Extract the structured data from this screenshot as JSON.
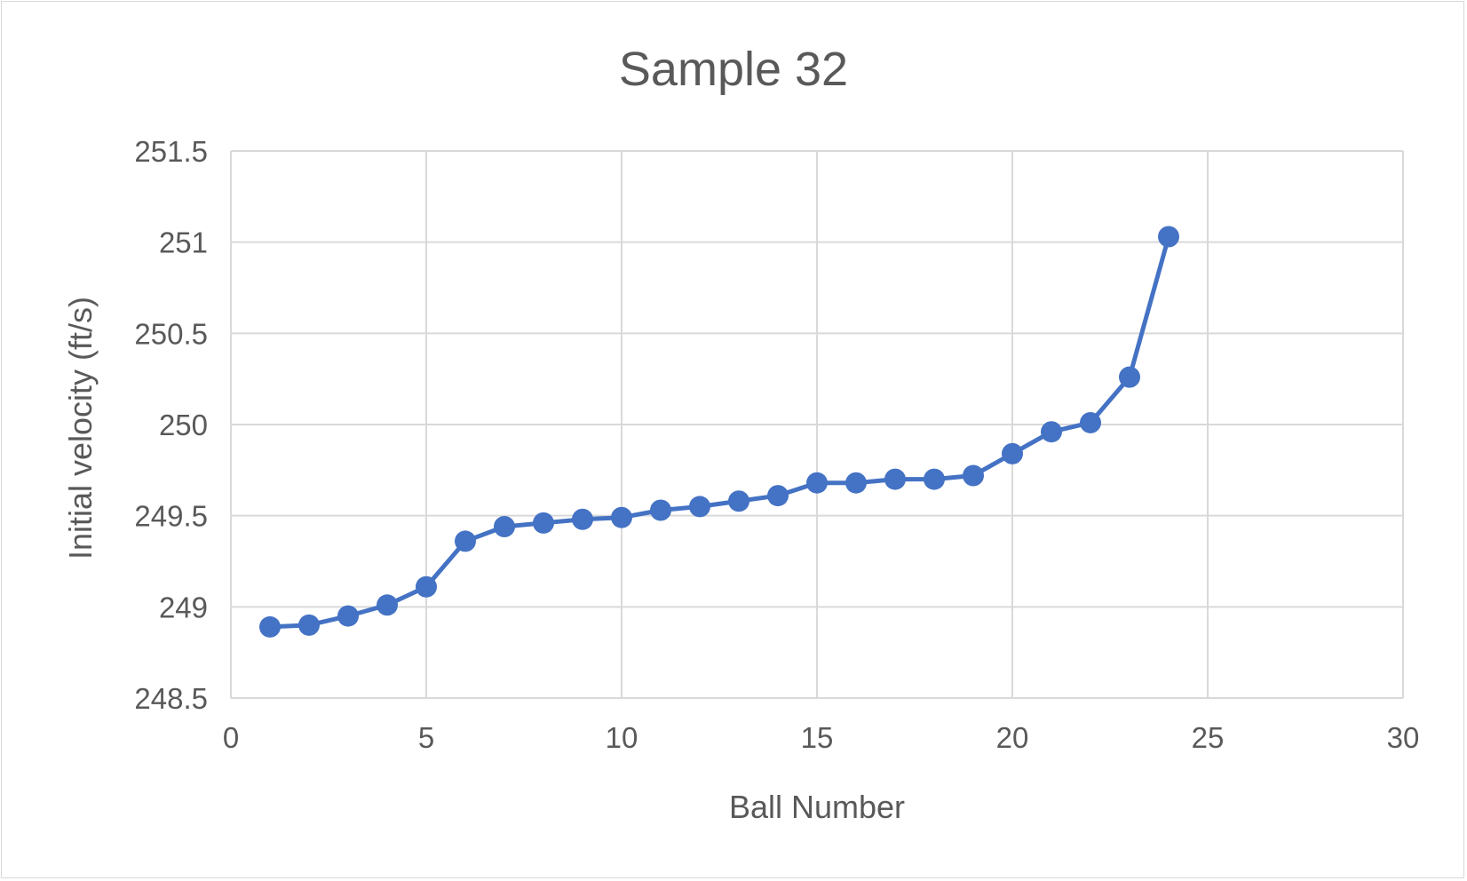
{
  "chart_data": {
    "type": "line",
    "title": "Sample 32",
    "xlabel": "Ball Number",
    "ylabel": "Initial velocity (ft/s)",
    "xlim": [
      0,
      30
    ],
    "ylim": [
      248.5,
      251.5
    ],
    "x_ticks": [
      0,
      5,
      10,
      15,
      20,
      25,
      30
    ],
    "y_ticks": [
      248.5,
      249,
      249.5,
      250,
      250.5,
      251,
      251.5
    ],
    "x_tick_labels": [
      "0",
      "5",
      "10",
      "15",
      "20",
      "25",
      "30"
    ],
    "y_tick_labels": [
      "248.5",
      "249",
      "249.5",
      "250",
      "250.5",
      "251",
      "251.5"
    ],
    "grid": true,
    "legend": "none",
    "series": [
      {
        "color": "#4472c4",
        "marker": "circle",
        "x": [
          1,
          2,
          3,
          4,
          5,
          6,
          7,
          8,
          9,
          10,
          11,
          12,
          13,
          14,
          15,
          16,
          17,
          18,
          19,
          20,
          21,
          22,
          23,
          24
        ],
        "y": [
          248.89,
          248.9,
          248.95,
          249.01,
          249.11,
          249.36,
          249.44,
          249.46,
          249.48,
          249.49,
          249.53,
          249.55,
          249.58,
          249.61,
          249.68,
          249.68,
          249.7,
          249.7,
          249.72,
          249.84,
          249.96,
          250.01,
          250.26,
          251.03
        ]
      }
    ]
  }
}
